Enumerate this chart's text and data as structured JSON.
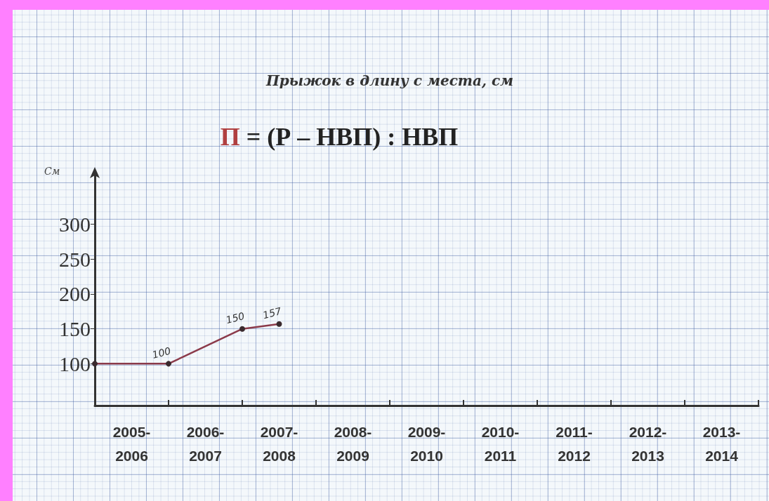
{
  "chart_data": {
    "type": "line",
    "title": "Прыжок в длину с места, см",
    "subtitle": "П = (Р – НВП) : НВП",
    "ylabel": "См",
    "categories": [
      null,
      "2005-\n2006",
      null,
      "2006-\n2007",
      null,
      "2007-\n2008",
      null,
      "2008-\n2009",
      null,
      "2009-\n2010",
      null,
      "2010-\n2011",
      null,
      "2011-\n2012",
      null,
      "2012-\n2013",
      null,
      "2013-\n2014",
      null
    ],
    "series": [
      {
        "color": "#8b3a4a",
        "values": [
          100,
          null,
          100,
          null,
          150,
          157,
          null,
          null,
          null,
          null,
          null,
          null,
          null,
          null,
          null,
          null,
          null,
          null,
          null
        ],
        "value_labels": [
          null,
          null,
          "100",
          null,
          "150",
          "157",
          null,
          null,
          null,
          null,
          null,
          null,
          null,
          null,
          null,
          null,
          null,
          null,
          null
        ]
      }
    ],
    "ylim": [
      40,
      370
    ],
    "yticks": [
      100,
      150,
      200,
      250,
      300
    ],
    "grid": false,
    "marker": "circle",
    "line_style": "solid"
  }
}
